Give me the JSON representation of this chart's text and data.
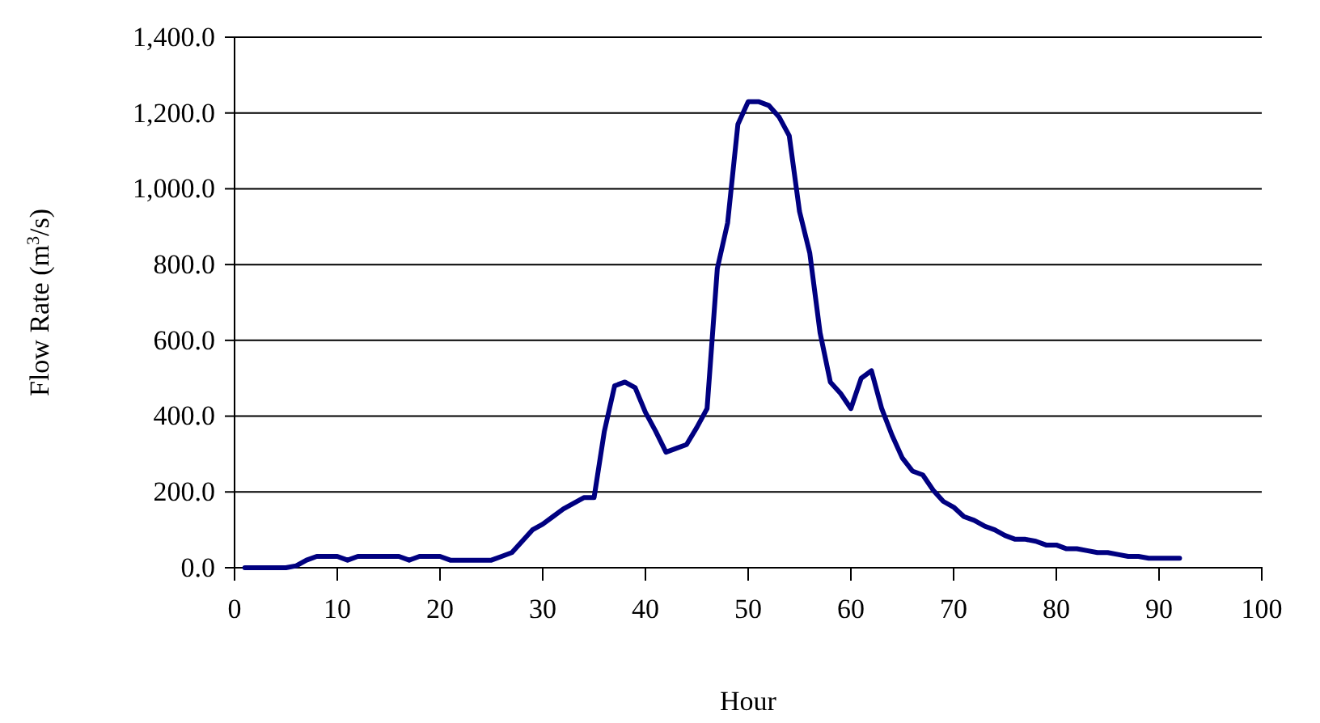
{
  "chart_data": {
    "type": "line",
    "xlabel": "Hour",
    "ylabel": "Flow Rate (m$^{3}$/s)",
    "x": [
      1,
      2,
      3,
      4,
      5,
      6,
      7,
      8,
      9,
      10,
      11,
      12,
      13,
      14,
      15,
      16,
      17,
      18,
      19,
      20,
      21,
      22,
      23,
      24,
      25,
      26,
      27,
      28,
      29,
      30,
      31,
      32,
      33,
      34,
      35,
      36,
      37,
      38,
      39,
      40,
      41,
      42,
      43,
      44,
      45,
      46,
      47,
      48,
      49,
      50,
      51,
      52,
      53,
      54,
      55,
      56,
      57,
      58,
      59,
      60,
      61,
      62,
      63,
      64,
      65,
      66,
      67,
      68,
      69,
      70,
      71,
      72,
      73,
      74,
      75,
      76,
      77,
      78,
      79,
      80,
      81,
      82,
      83,
      84,
      85,
      86,
      87,
      88,
      89,
      90,
      91,
      92
    ],
    "series": [
      {
        "color": "#000080",
        "values": [
          0,
          0,
          0,
          0,
          0,
          5,
          20,
          30,
          30,
          30,
          20,
          30,
          30,
          30,
          30,
          30,
          20,
          30,
          30,
          30,
          20,
          20,
          20,
          20,
          20,
          30,
          40,
          70,
          100,
          115,
          135,
          155,
          170,
          185,
          185,
          360,
          480,
          490,
          475,
          410,
          360,
          305,
          315,
          325,
          370,
          420,
          790,
          910,
          1170,
          1230,
          1230,
          1220,
          1190,
          1140,
          940,
          830,
          620,
          490,
          460,
          420,
          500,
          520,
          420,
          350,
          290,
          255,
          245,
          205,
          175,
          160,
          135,
          125,
          110,
          100,
          85,
          75,
          75,
          70,
          60,
          60,
          50,
          50,
          45,
          40,
          40,
          35,
          30,
          30,
          25,
          25,
          25,
          25
        ]
      }
    ],
    "xlim": [
      0,
      100
    ],
    "xticks": [
      0,
      10,
      20,
      30,
      40,
      50,
      60,
      70,
      80,
      90,
      100
    ],
    "ylim": [
      0,
      1400
    ],
    "yticks": [
      {
        "value": 0,
        "label": "0.0"
      },
      {
        "value": 200,
        "label": "200.0"
      },
      {
        "value": 400,
        "label": "400.0"
      },
      {
        "value": 600,
        "label": "600.0"
      },
      {
        "value": 800,
        "label": "800.0"
      },
      {
        "value": 1000,
        "label": "1,000.0"
      },
      {
        "value": 1200,
        "label": "1,200.0"
      },
      {
        "value": 1400,
        "label": "1,400.0"
      }
    ],
    "grid": "y",
    "marker": "none",
    "line_style": "solid"
  }
}
